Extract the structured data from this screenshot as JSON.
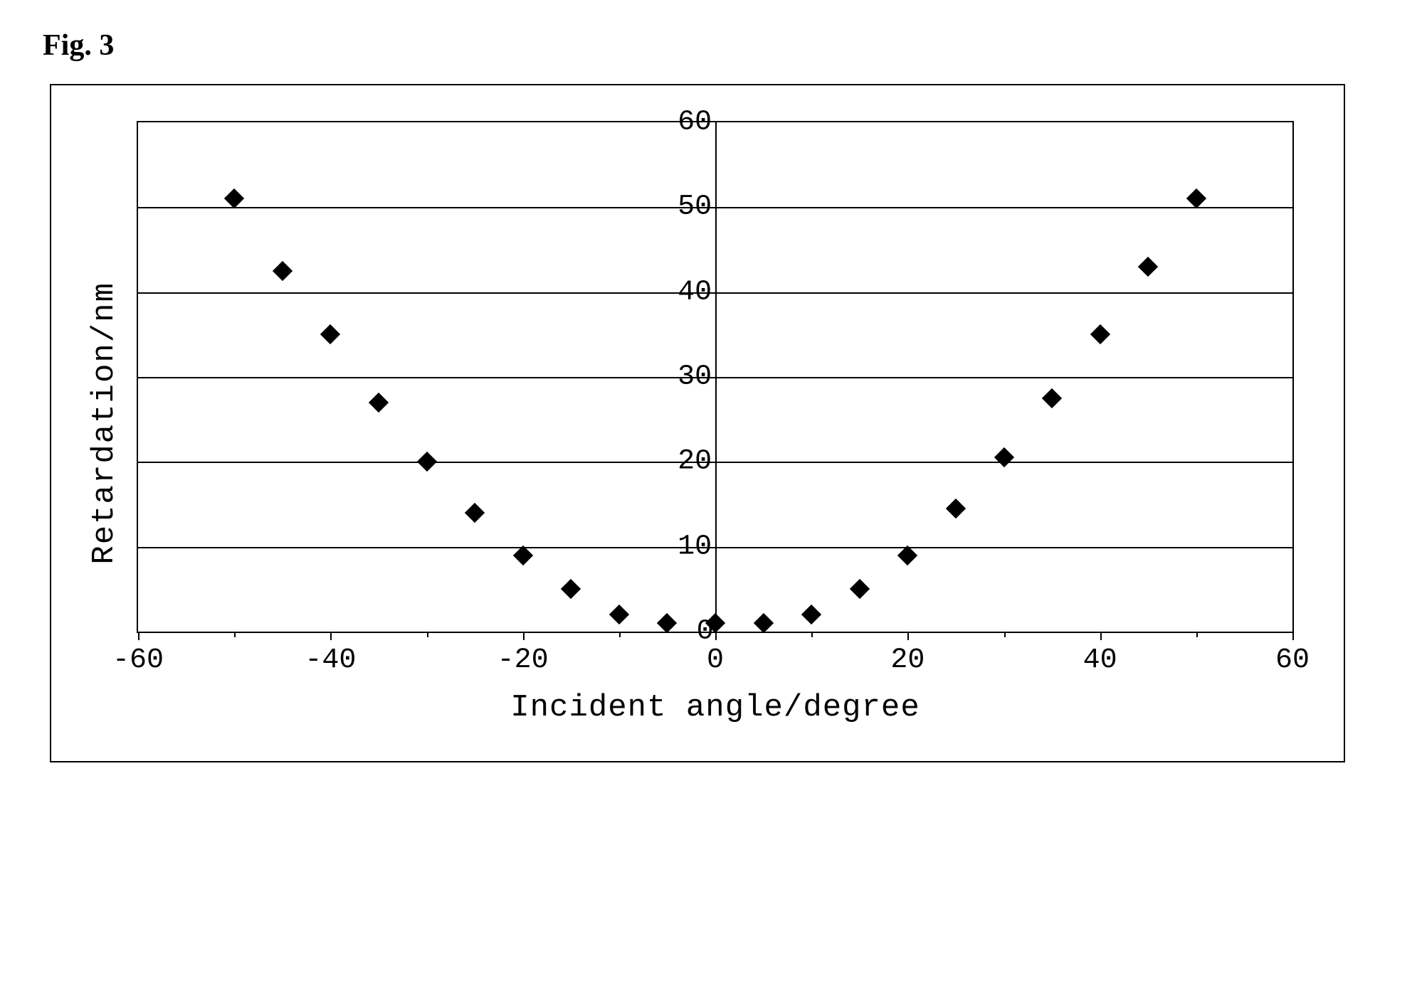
{
  "figure": {
    "title": "Fig. 3",
    "chart": {
      "type": "scatter",
      "xlabel": "Incident angle/degree",
      "ylabel": "Retardation/nm",
      "xlim": [
        -60,
        60
      ],
      "ylim": [
        0,
        60
      ],
      "xtick_step": 20,
      "xtick_minor_step": 10,
      "ytick_step": 10,
      "xtick_labels": [
        "-60",
        "-40",
        "-20",
        "0",
        "20",
        "40",
        "60"
      ],
      "ytick_labels": [
        "0",
        "10",
        "20",
        "30",
        "40",
        "50",
        "60"
      ],
      "marker_style": "diamond",
      "marker_color": "#000000",
      "marker_size": 20,
      "background_color": "#ffffff",
      "grid_color": "#000000",
      "border_color": "#000000",
      "label_fontsize": 44,
      "tick_fontsize": 40,
      "font_family": "Courier New",
      "data": [
        {
          "x": -50,
          "y": 51
        },
        {
          "x": -45,
          "y": 42.5
        },
        {
          "x": -40,
          "y": 35
        },
        {
          "x": -35,
          "y": 27
        },
        {
          "x": -30,
          "y": 20
        },
        {
          "x": -25,
          "y": 14
        },
        {
          "x": -20,
          "y": 9
        },
        {
          "x": -15,
          "y": 5
        },
        {
          "x": -10,
          "y": 2
        },
        {
          "x": -5,
          "y": 1
        },
        {
          "x": 0,
          "y": 1
        },
        {
          "x": 5,
          "y": 1
        },
        {
          "x": 10,
          "y": 2
        },
        {
          "x": 15,
          "y": 5
        },
        {
          "x": 20,
          "y": 9
        },
        {
          "x": 25,
          "y": 14.5
        },
        {
          "x": 30,
          "y": 20.5
        },
        {
          "x": 35,
          "y": 27.5
        },
        {
          "x": 40,
          "y": 35
        },
        {
          "x": 45,
          "y": 43
        },
        {
          "x": 50,
          "y": 51
        }
      ]
    }
  }
}
